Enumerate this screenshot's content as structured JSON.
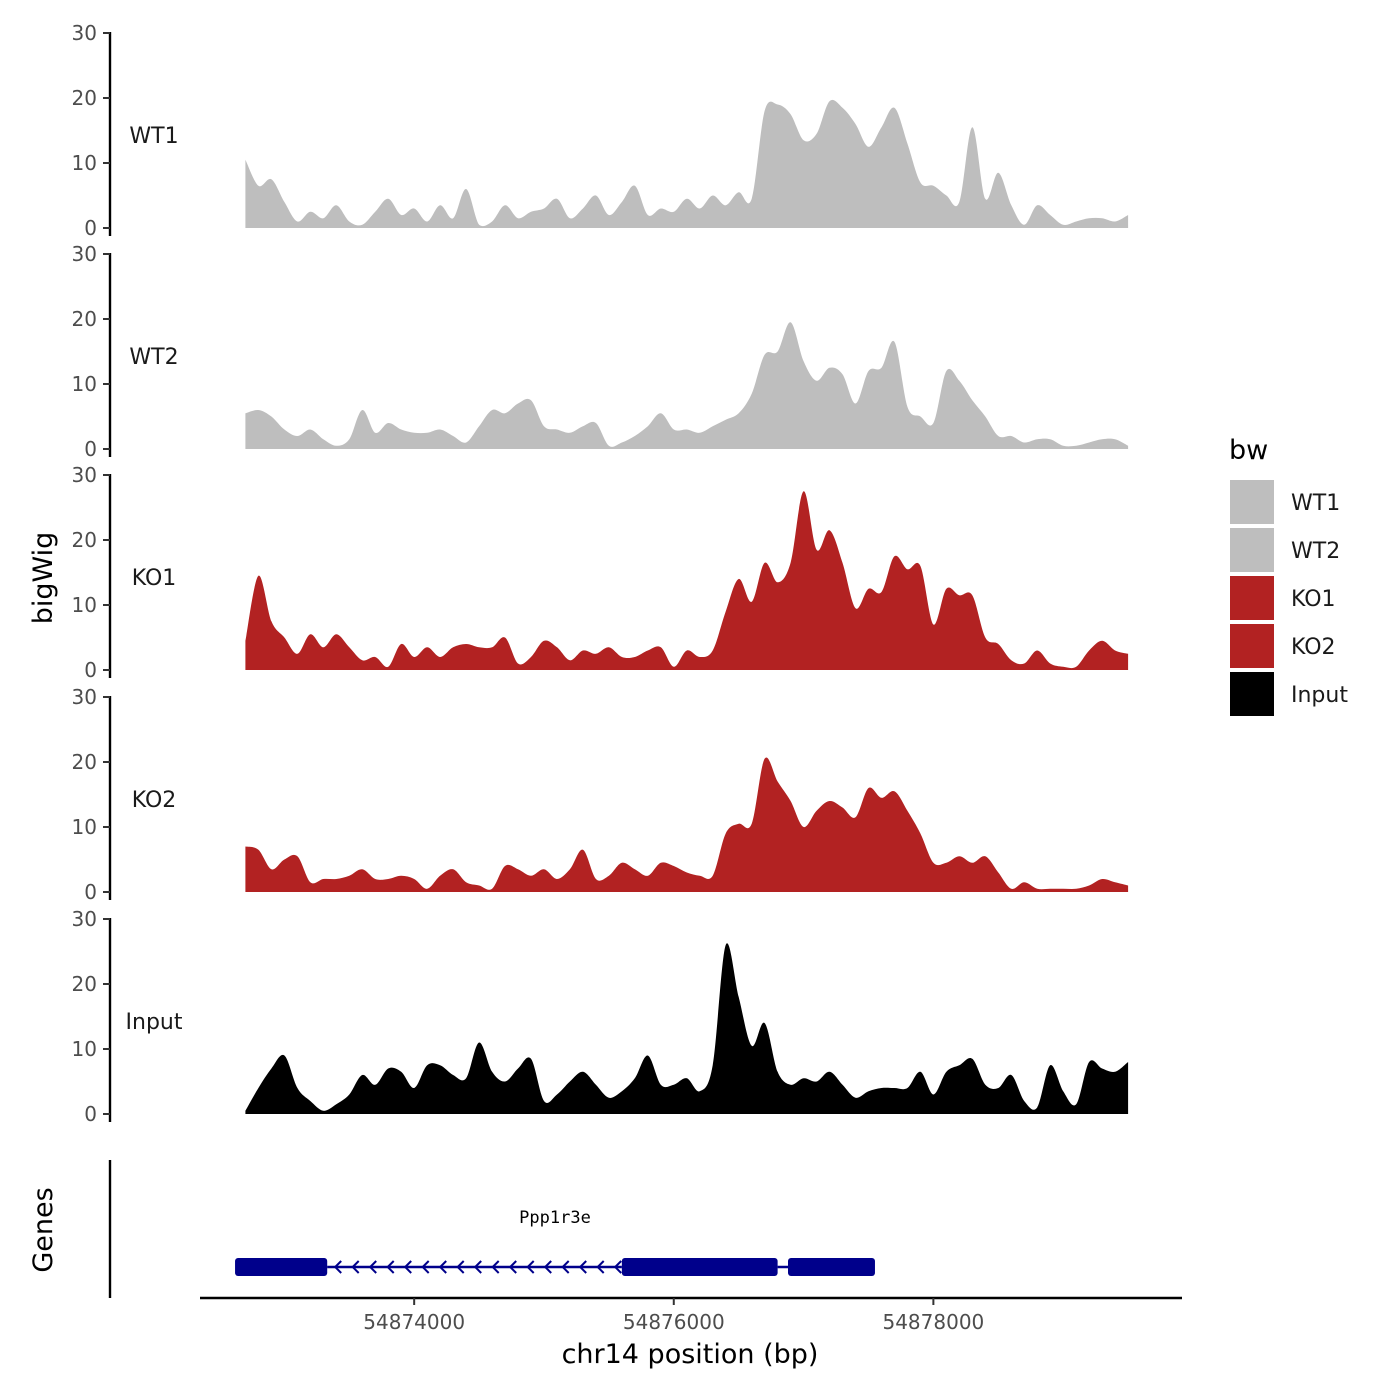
{
  "chart_data": {
    "type": "area",
    "ylabel": "bigWig",
    "xlabel": "chr14 position (bp)",
    "genes_label": "Genes",
    "xlim": [
      54872350,
      54879900
    ],
    "ylim": [
      0,
      30
    ],
    "y_ticks": [
      "0",
      "10",
      "20",
      "30"
    ],
    "x_ticks": [
      {
        "value": 54874000,
        "label": "54874000"
      },
      {
        "value": 54876000,
        "label": "54876000"
      },
      {
        "value": 54878000,
        "label": "54878000"
      }
    ],
    "legend": {
      "title": "bw",
      "entries": [
        {
          "name": "WT1",
          "color": "#bebebe"
        },
        {
          "name": "WT2",
          "color": "#bebebe"
        },
        {
          "name": "KO1",
          "color": "#b22222"
        },
        {
          "name": "KO2",
          "color": "#b22222"
        },
        {
          "name": "Input",
          "color": "#000000"
        }
      ]
    },
    "x_positions": [
      54872700,
      54872800,
      54872900,
      54873000,
      54873100,
      54873200,
      54873300,
      54873400,
      54873500,
      54873600,
      54873700,
      54873800,
      54873900,
      54874000,
      54874100,
      54874200,
      54874300,
      54874400,
      54874500,
      54874600,
      54874700,
      54874800,
      54874900,
      54875000,
      54875100,
      54875200,
      54875300,
      54875400,
      54875500,
      54875600,
      54875700,
      54875800,
      54875900,
      54876000,
      54876100,
      54876200,
      54876300,
      54876400,
      54876500,
      54876600,
      54876700,
      54876800,
      54876900,
      54877000,
      54877100,
      54877200,
      54877300,
      54877400,
      54877500,
      54877600,
      54877700,
      54877800,
      54877900,
      54878000,
      54878100,
      54878200,
      54878300,
      54878400,
      54878500,
      54878600,
      54878700,
      54878800,
      54878900,
      54879000,
      54879100,
      54879200,
      54879300,
      54879400,
      54879500
    ],
    "series": [
      {
        "name": "WT1",
        "color": "#bebebe",
        "values": [
          10.5,
          6.5,
          7.5,
          4,
          1,
          2.5,
          1.5,
          3.5,
          1,
          0.5,
          2.5,
          4.5,
          2,
          3,
          1,
          3.5,
          1.5,
          6,
          0.5,
          1,
          3.5,
          1.5,
          2.5,
          3,
          4.5,
          1.5,
          3,
          5,
          2,
          4,
          6.5,
          2,
          3,
          2.5,
          4.5,
          3,
          5,
          3.5,
          5.5,
          4.5,
          18,
          19,
          17.5,
          13.5,
          14.5,
          19.5,
          18.5,
          16,
          12.5,
          15.5,
          18.5,
          13,
          7,
          6.5,
          5,
          4,
          15.5,
          4.5,
          8.5,
          3.5,
          0.5,
          3.5,
          2,
          0.5,
          1,
          1.5,
          1.5,
          1,
          2
        ]
      },
      {
        "name": "WT2",
        "color": "#bebebe",
        "values": [
          5.5,
          6,
          5,
          3,
          2,
          3,
          1.5,
          0.5,
          1.5,
          6,
          2.5,
          4,
          3,
          2.5,
          2.5,
          3,
          2,
          1,
          3.5,
          6,
          5.5,
          7,
          7.5,
          3.5,
          3,
          2.5,
          3.5,
          4,
          0.5,
          1,
          2,
          3.5,
          5.5,
          3,
          3,
          2.5,
          3.5,
          4.5,
          5.5,
          8.5,
          14.5,
          15,
          19.5,
          13.5,
          10.5,
          12.5,
          11.5,
          7,
          12,
          12.5,
          16.5,
          6.5,
          5,
          4,
          12,
          10.5,
          7.5,
          5,
          2,
          2,
          1,
          1.5,
          1.5,
          0.5,
          0.5,
          1,
          1.5,
          1.5,
          0.5
        ]
      },
      {
        "name": "KO1",
        "color": "#b22222",
        "values": [
          4.5,
          14.5,
          7.5,
          5,
          2.5,
          5.5,
          3.5,
          5.5,
          3.5,
          1.5,
          2,
          0.5,
          4,
          2,
          3.5,
          2,
          3.5,
          4,
          3.5,
          3.5,
          5,
          1,
          2,
          4.5,
          3.5,
          1.5,
          3,
          2.5,
          3.5,
          2,
          2,
          3,
          3.5,
          0.5,
          3,
          2,
          3,
          9,
          14,
          10.5,
          16.5,
          13.5,
          16.5,
          27.5,
          18.5,
          21.5,
          16.5,
          9.5,
          12.5,
          12,
          17.5,
          15.5,
          16,
          7,
          12.5,
          11.5,
          11.5,
          5,
          4,
          1.5,
          1,
          3,
          1,
          0.5,
          0.5,
          3,
          4.5,
          3,
          2.5
        ]
      },
      {
        "name": "KO2",
        "color": "#b22222",
        "values": [
          7,
          6.5,
          3.5,
          5,
          5.5,
          1.5,
          2,
          2,
          2.5,
          3.5,
          2,
          2,
          2.5,
          2,
          0.5,
          2.5,
          3.5,
          1.5,
          1,
          0.5,
          4,
          3.5,
          2.5,
          3.5,
          2,
          3.5,
          6.5,
          2,
          2.5,
          4.5,
          3.5,
          2.5,
          4.5,
          4,
          3,
          2.5,
          2.5,
          9,
          10.5,
          10.5,
          20.5,
          17,
          14,
          10,
          12.5,
          14,
          13,
          11.5,
          16,
          14.5,
          15.5,
          12.5,
          9,
          4.5,
          4.5,
          5.5,
          4.5,
          5.5,
          3,
          0.5,
          1.5,
          0.5,
          0.5,
          0.5,
          0.5,
          1,
          2,
          1.5,
          1
        ]
      },
      {
        "name": "Input",
        "color": "#000000",
        "values": [
          0.5,
          4,
          7,
          9,
          4,
          2,
          0.5,
          1.5,
          3,
          6,
          4.5,
          7,
          6.5,
          4,
          7.5,
          7.5,
          6,
          5.5,
          11,
          6.5,
          5,
          7,
          8.5,
          2,
          3,
          5,
          6.5,
          4.5,
          2.5,
          3.5,
          5.5,
          9,
          4.5,
          4.5,
          5.5,
          3.5,
          7.5,
          26,
          18,
          10.5,
          14,
          6.5,
          4.5,
          5.5,
          5,
          6.5,
          4.5,
          2.5,
          3.5,
          4,
          4,
          4,
          6.5,
          3,
          6.5,
          7.5,
          8.5,
          4.5,
          4,
          6,
          2,
          1,
          7.5,
          3.5,
          1.5,
          8,
          7,
          6.5,
          8
        ]
      }
    ],
    "gene_track": {
      "gene_name": "Ppp1r3e",
      "strand": "-",
      "exons": [
        {
          "start": 54872620,
          "end": 54873330,
          "kind": "thick"
        },
        {
          "start": 54875600,
          "end": 54876800,
          "kind": "thick"
        },
        {
          "start": 54876880,
          "end": 54877550,
          "kind": "thick"
        }
      ],
      "introns": [
        {
          "start": 54873330,
          "end": 54875600
        },
        {
          "start": 54876800,
          "end": 54876880
        }
      ],
      "color": "#00008b"
    }
  }
}
